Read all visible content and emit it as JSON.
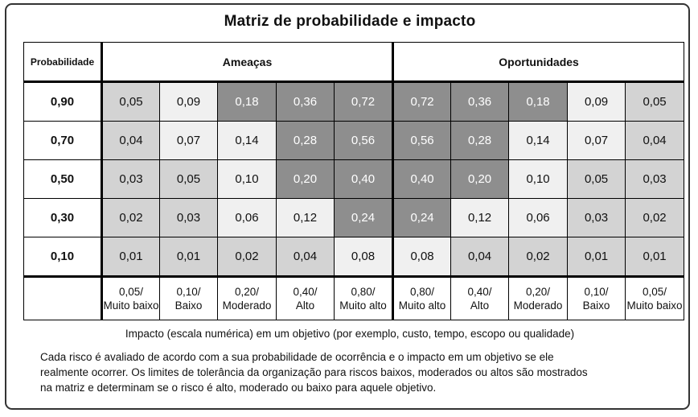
{
  "title": "Matriz de probabilidade e impacto",
  "header": {
    "probability_label": "Probabilidade",
    "threats_label": "Ameaças",
    "opportunities_label": "Oportunidades"
  },
  "colors": {
    "dark": "#8e8e8e",
    "medium": "#d3d3d3",
    "light": "#f0f0f0"
  },
  "rows": [
    {
      "probability": "0,90",
      "cells": [
        {
          "value": "0,05",
          "shade": "medium"
        },
        {
          "value": "0,09",
          "shade": "light"
        },
        {
          "value": "0,18",
          "shade": "dark"
        },
        {
          "value": "0,36",
          "shade": "dark"
        },
        {
          "value": "0,72",
          "shade": "dark"
        },
        {
          "value": "0,72",
          "shade": "dark"
        },
        {
          "value": "0,36",
          "shade": "dark"
        },
        {
          "value": "0,18",
          "shade": "dark"
        },
        {
          "value": "0,09",
          "shade": "light"
        },
        {
          "value": "0,05",
          "shade": "medium"
        }
      ]
    },
    {
      "probability": "0,70",
      "cells": [
        {
          "value": "0,04",
          "shade": "medium"
        },
        {
          "value": "0,07",
          "shade": "light"
        },
        {
          "value": "0,14",
          "shade": "light"
        },
        {
          "value": "0,28",
          "shade": "dark"
        },
        {
          "value": "0,56",
          "shade": "dark"
        },
        {
          "value": "0,56",
          "shade": "dark"
        },
        {
          "value": "0,28",
          "shade": "dark"
        },
        {
          "value": "0,14",
          "shade": "light"
        },
        {
          "value": "0,07",
          "shade": "light"
        },
        {
          "value": "0,04",
          "shade": "medium"
        }
      ]
    },
    {
      "probability": "0,50",
      "cells": [
        {
          "value": "0,03",
          "shade": "medium"
        },
        {
          "value": "0,05",
          "shade": "medium"
        },
        {
          "value": "0,10",
          "shade": "light"
        },
        {
          "value": "0,20",
          "shade": "dark"
        },
        {
          "value": "0,40",
          "shade": "dark"
        },
        {
          "value": "0,40",
          "shade": "dark"
        },
        {
          "value": "0,20",
          "shade": "dark"
        },
        {
          "value": "0,10",
          "shade": "light"
        },
        {
          "value": "0,05",
          "shade": "medium"
        },
        {
          "value": "0,03",
          "shade": "medium"
        }
      ]
    },
    {
      "probability": "0,30",
      "cells": [
        {
          "value": "0,02",
          "shade": "medium"
        },
        {
          "value": "0,03",
          "shade": "medium"
        },
        {
          "value": "0,06",
          "shade": "light"
        },
        {
          "value": "0,12",
          "shade": "light"
        },
        {
          "value": "0,24",
          "shade": "dark"
        },
        {
          "value": "0,24",
          "shade": "dark"
        },
        {
          "value": "0,12",
          "shade": "light"
        },
        {
          "value": "0,06",
          "shade": "light"
        },
        {
          "value": "0,03",
          "shade": "medium"
        },
        {
          "value": "0,02",
          "shade": "medium"
        }
      ]
    },
    {
      "probability": "0,10",
      "cells": [
        {
          "value": "0,01",
          "shade": "medium"
        },
        {
          "value": "0,01",
          "shade": "medium"
        },
        {
          "value": "0,02",
          "shade": "medium"
        },
        {
          "value": "0,04",
          "shade": "medium"
        },
        {
          "value": "0,08",
          "shade": "light"
        },
        {
          "value": "0,08",
          "shade": "light"
        },
        {
          "value": "0,04",
          "shade": "medium"
        },
        {
          "value": "0,02",
          "shade": "medium"
        },
        {
          "value": "0,01",
          "shade": "medium"
        },
        {
          "value": "0,01",
          "shade": "medium"
        }
      ]
    }
  ],
  "impacts": [
    {
      "value": "0,05/",
      "label": "Muito baixo"
    },
    {
      "value": "0,10/",
      "label": "Baixo"
    },
    {
      "value": "0,20/",
      "label": "Moderado"
    },
    {
      "value": "0,40/",
      "label": "Alto"
    },
    {
      "value": "0,80/",
      "label": "Muito alto"
    },
    {
      "value": "0,80/",
      "label": "Muito alto"
    },
    {
      "value": "0,40/",
      "label": "Alto"
    },
    {
      "value": "0,20/",
      "label": "Moderado"
    },
    {
      "value": "0,10/",
      "label": "Baixo"
    },
    {
      "value": "0,05/",
      "label": "Muito baixo"
    }
  ],
  "caption": "Impacto (escala numérica) em um objetivo (por exemplo, custo, tempo, escopo ou qualidade)",
  "note_lines": [
    "Cada risco é avaliado de acordo com a sua probabilidade  de ocorrência e o impacto em um objetivo se ele",
    "realmente ocorrer. Os limites de tolerância da organização para riscos baixos, moderados ou altos são mostrados",
    "na matriz e determinam se o risco é alto, moderado ou baixo para aquele objetivo."
  ]
}
